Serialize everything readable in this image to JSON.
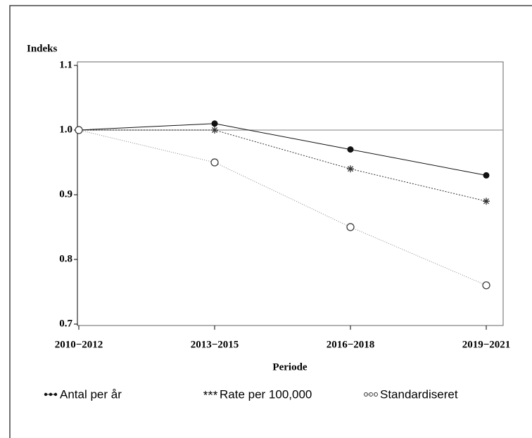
{
  "chart_data": {
    "type": "line",
    "y_label": "Indeks",
    "x_label": "Periode",
    "categories": [
      "2010−2012",
      "2013−2015",
      "2016−2018",
      "2019−2021"
    ],
    "series": [
      {
        "name": "Antal per år",
        "color": "#111111",
        "marker": "dot",
        "dash": "none",
        "values": [
          1.0,
          1.01,
          0.97,
          0.93
        ]
      },
      {
        "name": "Rate per 100,000",
        "color": "#333333",
        "marker": "star",
        "dash": "2,2",
        "values": [
          1.0,
          1.0,
          0.94,
          0.89
        ]
      },
      {
        "name": "Standardiseret",
        "color": "#888888",
        "marker": "ring",
        "dash": "1,2",
        "values": [
          1.0,
          0.95,
          0.85,
          0.76
        ]
      }
    ],
    "ylim": [
      0.7,
      1.1
    ],
    "yticks": [
      0.7,
      0.8,
      0.9,
      {
        "value": 1,
        "label": "1.0"
      },
      1.1
    ],
    "reference_line": 1
  }
}
